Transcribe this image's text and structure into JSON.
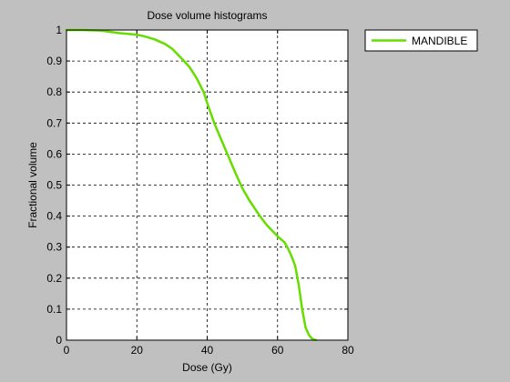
{
  "chart_data": {
    "type": "line",
    "title": "Dose volume histograms",
    "xlabel": "Dose (Gy)",
    "ylabel": "Fractional volume",
    "xlim": [
      0,
      80
    ],
    "ylim": [
      0,
      1
    ],
    "xticks": [
      "0",
      "20",
      "40",
      "60",
      "80"
    ],
    "yticks": [
      "0",
      "0.1",
      "0.2",
      "0.3",
      "0.4",
      "0.5",
      "0.6",
      "0.7",
      "0.8",
      "0.9",
      "1"
    ],
    "grid": true,
    "legend_position": "outside-top-right",
    "series": [
      {
        "name": "MANDIBLE",
        "color": "#66dd00",
        "x": [
          0,
          5,
          10,
          15,
          20,
          22,
          25,
          28,
          30,
          33,
          35,
          37,
          39,
          40,
          42,
          45,
          48,
          50,
          52,
          55,
          57,
          60,
          62,
          63,
          64,
          65,
          66,
          67,
          68,
          69,
          70,
          71
        ],
        "y": [
          1.0,
          1.0,
          0.998,
          0.99,
          0.985,
          0.98,
          0.97,
          0.955,
          0.94,
          0.905,
          0.88,
          0.845,
          0.8,
          0.765,
          0.7,
          0.62,
          0.54,
          0.49,
          0.45,
          0.4,
          0.37,
          0.335,
          0.315,
          0.295,
          0.27,
          0.24,
          0.18,
          0.1,
          0.04,
          0.015,
          0.003,
          0.0
        ]
      }
    ]
  }
}
